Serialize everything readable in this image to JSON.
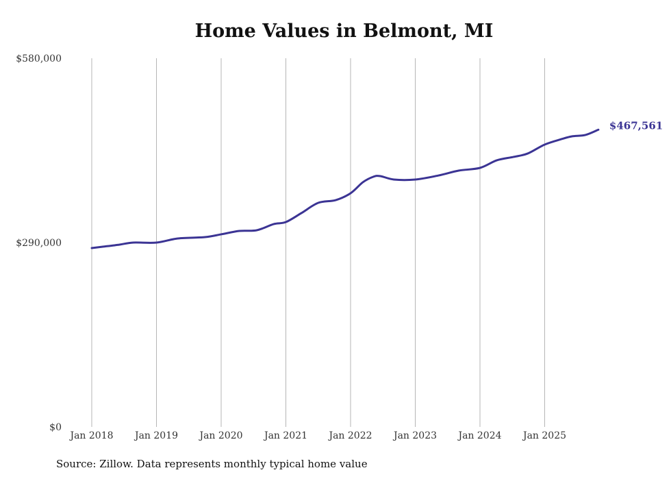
{
  "chart_data": {
    "type": "line",
    "title": "Home Values in Belmont, MI",
    "xlabel": "",
    "ylabel": "",
    "source": "Source: Zillow. Data represents monthly typical home value",
    "ylim": [
      0,
      580000
    ],
    "yticks": [
      0,
      290000,
      580000
    ],
    "ytick_labels": [
      "$0",
      "$290,000",
      "$580,000"
    ],
    "xlim": [
      2018,
      2025.83
    ],
    "xticks": [
      2018,
      2019,
      2020,
      2021,
      2022,
      2023,
      2024,
      2025
    ],
    "xtick_labels": [
      "Jan 2018",
      "Jan 2019",
      "Jan 2020",
      "Jan 2021",
      "Jan 2022",
      "Jan 2023",
      "Jan 2024",
      "Jan 2025"
    ],
    "grid": "vertical",
    "line_color": "#3b3494",
    "end_label": "$467,561",
    "series": [
      {
        "name": "Typical home value",
        "x": [
          2018,
          2018.17,
          2018.43,
          2018.64,
          2019,
          2019.33,
          2019.75,
          2020,
          2020.28,
          2020.55,
          2020.81,
          2021,
          2021.24,
          2021.5,
          2021.77,
          2022,
          2022.19,
          2022.35,
          2022.46,
          2022.67,
          2023,
          2023.36,
          2023.67,
          2024,
          2024.26,
          2024.52,
          2024.74,
          2025,
          2025.26,
          2025.42,
          2025.63,
          2025.83
        ],
        "y": [
          281400,
          283500,
          286800,
          290000,
          290000,
          296500,
          298600,
          303000,
          308300,
          309400,
          319100,
          322300,
          336400,
          352500,
          356800,
          367600,
          384900,
          393500,
          394600,
          389200,
          389200,
          395600,
          403200,
          407500,
          419400,
          424800,
          430200,
          444200,
          452800,
          457100,
          459300,
          467561
        ]
      }
    ]
  }
}
